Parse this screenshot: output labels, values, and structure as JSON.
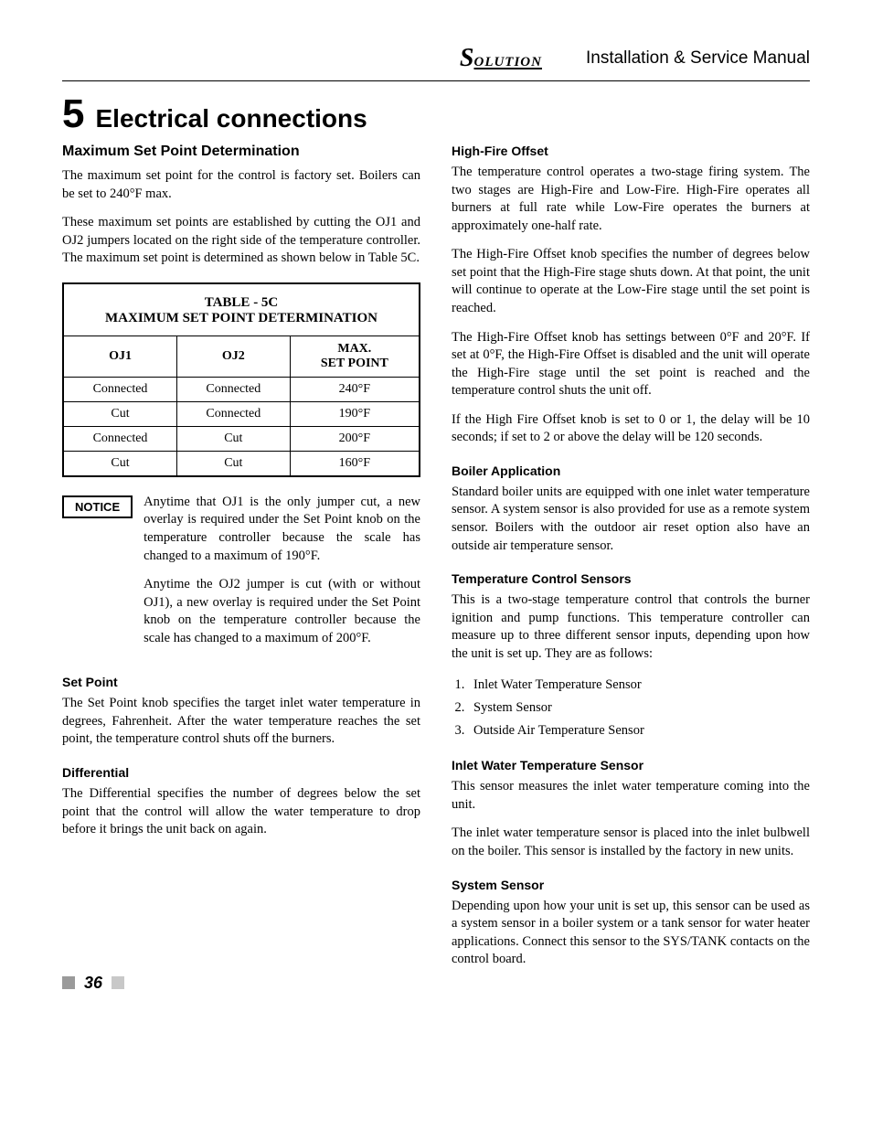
{
  "header": {
    "logo_text": "SOLUTION",
    "manual_title": "Installation & Service Manual"
  },
  "chapter": {
    "number": "5",
    "title": "Electrical connections"
  },
  "left": {
    "heading": "Maximum Set Point Determination",
    "p1": "The maximum set point for the control is factory set. Boilers can be set to 240°F max.",
    "p2": "These maximum set points are established by cutting the OJ1 and OJ2 jumpers located on the right side of the temperature controller.  The maximum set point is determined as shown below in Table 5C.",
    "table": {
      "title_line1": "TABLE - 5C",
      "title_line2": "MAXIMUM SET POINT DETERMINATION",
      "columns": [
        "OJ1",
        "OJ2",
        "MAX. SET POINT"
      ],
      "rows": [
        [
          "Connected",
          "Connected",
          "240°F"
        ],
        [
          "Cut",
          "Connected",
          "190°F"
        ],
        [
          "Connected",
          "Cut",
          "200°F"
        ],
        [
          "Cut",
          "Cut",
          "160°F"
        ]
      ]
    },
    "notice_label": "NOTICE",
    "notice_p1": "Anytime that OJ1 is the only jumper cut, a new overlay is required under the Set Point knob on the temperature controller because the scale has changed to a maximum of 190°F.",
    "notice_p2": "Anytime the OJ2 jumper is cut (with or without OJ1), a new overlay is required under the Set Point knob on the temperature controller because the scale has changed to a maximum of 200°F.",
    "setpoint_h": "Set Point",
    "setpoint_p": "The Set Point knob specifies the target inlet water temperature in degrees, Fahrenheit. After the water temperature reaches the set point, the temperature control shuts off the burners.",
    "diff_h": "Differential",
    "diff_p": "The Differential specifies the number of degrees below the set point that the control will allow the water temperature to drop before it brings the unit back on again."
  },
  "right": {
    "hf_h": "High-Fire Offset",
    "hf_p1": "The temperature control operates a two-stage firing system. The two stages are High-Fire and Low-Fire.  High-Fire operates all burners at full rate while Low-Fire operates the burners at approximately one-half rate.",
    "hf_p2": "The High-Fire Offset knob specifies the number of degrees below set point that the High-Fire stage shuts down. At that point, the unit will continue to operate at the Low-Fire stage until the set point is reached.",
    "hf_p3": "The High-Fire Offset knob has settings between 0°F and 20°F. If set at 0°F, the High-Fire Offset is disabled and the unit will operate the High-Fire stage until the set point is reached and the temperature control shuts the unit off.",
    "hf_p4": "If the High Fire Offset knob is set to 0 or 1, the delay will be 10 seconds; if set to 2 or above the delay will be 120 seconds.",
    "ba_h": "Boiler Application",
    "ba_p": "Standard boiler units are equipped with one inlet water temperature sensor.  A system sensor is also provided for use as a remote system sensor.  Boilers with the outdoor air reset option also have an outside air temperature sensor.",
    "tcs_h": "Temperature Control Sensors",
    "tcs_p": "This is a two-stage temperature control that controls the burner ignition and pump functions. This temperature controller can measure up to three different sensor inputs, depending upon how the unit is set up. They are as follows:",
    "sensor_list": [
      "Inlet Water Temperature Sensor",
      "System Sensor",
      "Outside Air Temperature Sensor"
    ],
    "iw_h": "Inlet Water Temperature Sensor",
    "iw_p1": "This sensor measures the inlet water temperature coming into the unit.",
    "iw_p2": "The inlet water temperature sensor is placed into the inlet bulbwell on the boiler. This sensor is installed by the factory in new units.",
    "ss_h": "System Sensor",
    "ss_p": "Depending upon how your unit is set up, this sensor can be used as a system sensor in a boiler system or a tank sensor for water heater applications.  Connect this sensor to the SYS/TANK contacts on the control board."
  },
  "footer": {
    "page_number": "36"
  }
}
